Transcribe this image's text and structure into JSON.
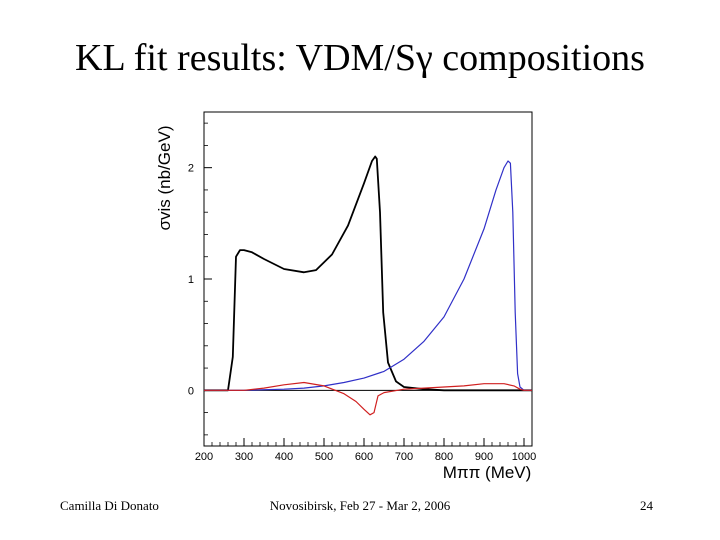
{
  "slide": {
    "title": "KL fit results: VDM/Sγ compositions",
    "footer_left": "Camilla Di Donato",
    "footer_center": "Novosibirsk, Feb 27 - Mar 2, 2006",
    "footer_right": "24"
  },
  "chart_data": {
    "type": "line",
    "title": "",
    "xlabel": "Mππ (MeV)",
    "ylabel": "σvis (nb/GeV)",
    "xlim": [
      200,
      1020
    ],
    "ylim": [
      -0.5,
      2.5
    ],
    "x_ticks": [
      200,
      300,
      400,
      500,
      600,
      700,
      800,
      900,
      1000
    ],
    "y_ticks": [
      0,
      1,
      2
    ],
    "grid": false,
    "legend": "none",
    "series": [
      {
        "color": "#000000",
        "x": [
          200,
          260,
          272,
          280,
          290,
          300,
          320,
          350,
          400,
          450,
          480,
          520,
          560,
          600,
          620,
          628,
          632,
          640,
          648,
          660,
          680,
          700,
          750,
          800,
          900,
          1000,
          1020
        ],
        "y": [
          0,
          0,
          0.3,
          1.2,
          1.26,
          1.26,
          1.24,
          1.18,
          1.09,
          1.06,
          1.08,
          1.22,
          1.48,
          1.86,
          2.06,
          2.1,
          2.08,
          1.6,
          0.7,
          0.25,
          0.08,
          0.03,
          0.01,
          0,
          0,
          0,
          0
        ]
      },
      {
        "color": "#3030c8",
        "x": [
          200,
          300,
          400,
          450,
          500,
          550,
          600,
          650,
          700,
          750,
          800,
          850,
          900,
          930,
          950,
          960,
          966,
          972,
          978,
          984,
          990,
          1000,
          1020
        ],
        "y": [
          0,
          0,
          0.01,
          0.02,
          0.04,
          0.07,
          0.11,
          0.17,
          0.28,
          0.44,
          0.66,
          1.0,
          1.45,
          1.8,
          2.0,
          2.06,
          2.04,
          1.6,
          0.7,
          0.15,
          0.03,
          0,
          0
        ]
      },
      {
        "color": "#d02020",
        "x": [
          200,
          300,
          350,
          400,
          450,
          500,
          550,
          580,
          600,
          615,
          625,
          635,
          650,
          700,
          750,
          800,
          850,
          900,
          950,
          975,
          990,
          1000,
          1020
        ],
        "y": [
          0,
          0,
          0.02,
          0.05,
          0.07,
          0.04,
          -0.03,
          -0.1,
          -0.17,
          -0.22,
          -0.2,
          -0.05,
          -0.02,
          0.01,
          0.02,
          0.03,
          0.04,
          0.06,
          0.06,
          0.04,
          0.01,
          0,
          0
        ]
      }
    ]
  }
}
